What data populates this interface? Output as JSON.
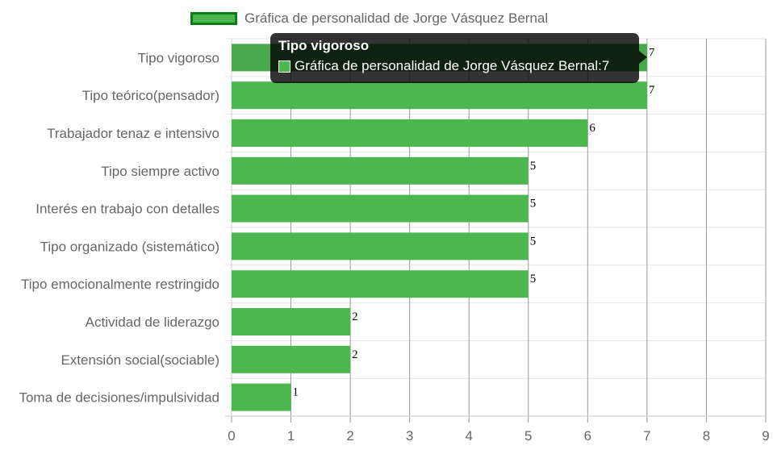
{
  "chart_data": {
    "type": "bar",
    "orientation": "horizontal",
    "categories": [
      "Tipo vigoroso",
      "Tipo teórico(pensador)",
      "Trabajador tenaz e intensivo",
      "Tipo siempre activo",
      "Interés en trabajo con detalles",
      "Tipo organizado (sistemático)",
      "Tipo emocionalmente restringido",
      "Actividad de liderazgo",
      "Extensión social(sociable)",
      "Toma de decisiones/impulsividad"
    ],
    "series": [
      {
        "name": "Gráfica de personalidad de Jorge Vásquez Bernal",
        "values": [
          7,
          7,
          6,
          5,
          5,
          5,
          5,
          2,
          2,
          1
        ]
      }
    ],
    "xlim": [
      0,
      9
    ],
    "x_ticks": [
      "0",
      "1",
      "2",
      "3",
      "4",
      "5",
      "6",
      "7",
      "8",
      "9"
    ],
    "grid": true,
    "data_labels": true,
    "legend_position": "top",
    "colors": {
      "bar": "#4cb74f",
      "bar_hover": "#4aa84c",
      "legend_border": "#0a7d13",
      "gridline": "#e5e5e5",
      "vertical_gridline": "#999999",
      "axis_text": "#666666",
      "data_label": "#000000"
    }
  },
  "legend": {
    "label": "Gráfica de personalidad de Jorge Vásquez Bernal"
  },
  "tooltip": {
    "title": "Tipo vigoroso",
    "series": "Gráfica de personalidad de Jorge Vásquez Bernal",
    "separator": ": ",
    "value": "7"
  }
}
